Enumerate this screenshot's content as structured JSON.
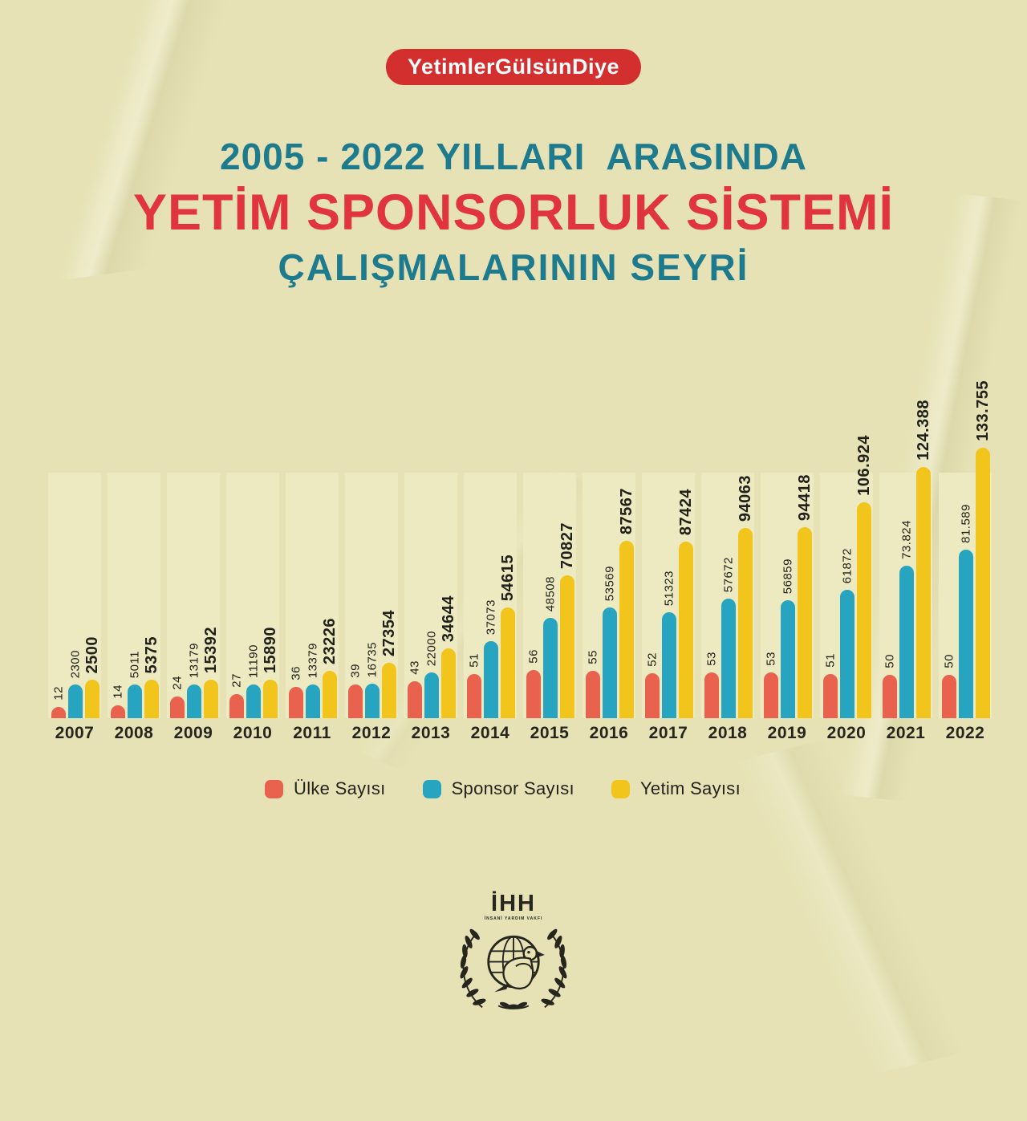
{
  "ui_colors": {
    "background": "#e6e2b5",
    "column_panel": "#ede9c1",
    "badge_bg": "#d32f2f",
    "title_teal": "#1e7b8e",
    "title_red": "#e0353e",
    "text_dark": "#23231c"
  },
  "badge": {
    "label": "YetimlerGülsünDiye"
  },
  "title": {
    "line1": "2005 - 2022 YILLARI  ARASINDA",
    "line2": "YETİM SPONSORLUK SİSTEMİ",
    "line3": "ÇALIŞMALARININ SEYRİ"
  },
  "chart_data": {
    "type": "bar",
    "title": "2005 - 2022 YILLARI ARASINDA YETİM SPONSORLUK SİSTEMİ ÇALIŞMALARININ SEYRİ",
    "categories": [
      "2007",
      "2008",
      "2009",
      "2010",
      "2011",
      "2012",
      "2013",
      "2014",
      "2015",
      "2016",
      "2017",
      "2018",
      "2019",
      "2020",
      "2021",
      "2022"
    ],
    "series": [
      {
        "name": "Ülke Sayısı",
        "color": "#e8624e",
        "values": [
          12,
          14,
          24,
          27,
          36,
          39,
          43,
          51,
          56,
          55,
          52,
          53,
          53,
          51,
          50,
          50
        ],
        "labels": [
          "12",
          "14",
          "24",
          "27",
          "36",
          "39",
          "43",
          "51",
          "56",
          "55",
          "52",
          "53",
          "53",
          "51",
          "50",
          "50"
        ]
      },
      {
        "name": "Sponsor Sayısı",
        "color": "#27a5c0",
        "values": [
          2300,
          5011,
          13179,
          11190,
          13379,
          16735,
          22000,
          37073,
          48508,
          53569,
          51323,
          57672,
          56859,
          61872,
          73824,
          81589
        ],
        "labels": [
          "2300",
          "5011",
          "13179",
          "11190",
          "13379",
          "16735",
          "22000",
          "37073",
          "48508",
          "53569",
          "51323",
          "57672",
          "56859",
          "61872",
          "73.824",
          "81.589"
        ]
      },
      {
        "name": "Yetim Sayısı",
        "color": "#f2c51d",
        "values": [
          2500,
          5375,
          15392,
          15890,
          23226,
          27354,
          34644,
          54615,
          70827,
          87567,
          87424,
          94063,
          94418,
          106924,
          124388,
          133755
        ],
        "labels": [
          "2500",
          "5375",
          "15392",
          "15890",
          "23226",
          "27354",
          "34644",
          "54615",
          "70827",
          "87567",
          "87424",
          "94063",
          "94418",
          "106.924",
          "124.388",
          "133.755"
        ]
      }
    ],
    "xlabel": "",
    "ylabel": "",
    "ylim": [
      0,
      140000
    ],
    "grid": false,
    "legend_position": "bottom"
  },
  "logo": {
    "name": "İHH",
    "subtext": "İNSANİ YARDIM VAKFI"
  }
}
